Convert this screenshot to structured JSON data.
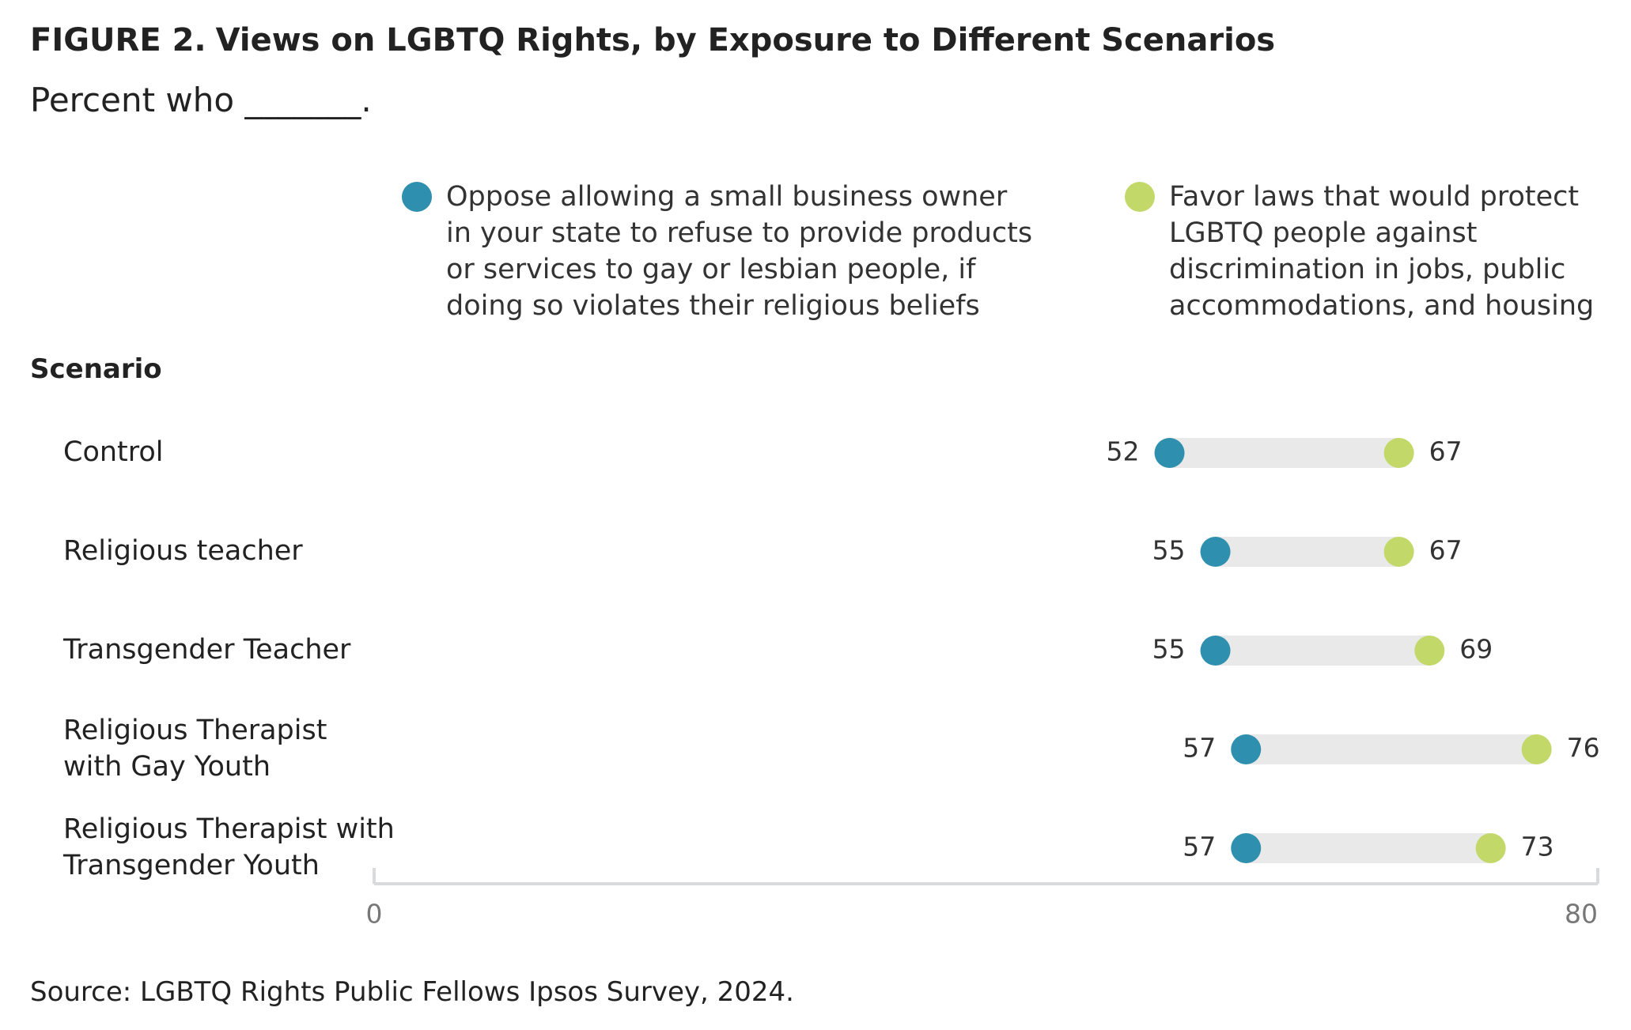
{
  "title": {
    "figure_label": "FIGURE 2.",
    "text": "Views on LGBTQ Rights, by Exposure to Different Scenarios"
  },
  "subtitle": "Percent who _______.",
  "legend": [
    {
      "color": "#2f8fae",
      "lines": [
        "Oppose allowing a small business owner",
        "in your state to refuse to provide products",
        "or services to gay or lesbian people, if",
        "doing so violates their religious beliefs"
      ]
    },
    {
      "color": "#c2d96a",
      "lines": [
        "Favor laws that would protect",
        "LGBTQ people against",
        "discrimination in jobs, public",
        "accommodations, and housing"
      ]
    }
  ],
  "scenario_header": "Scenario",
  "source": "Source: LGBTQ Rights Public Fellows Ipsos Survey, 2024.",
  "colors": {
    "oppose": "#2f8fae",
    "favor": "#c2d96a",
    "connector": "#e8e9e8",
    "axis": "#d9dadb",
    "text": "#222222"
  },
  "chart_data": {
    "type": "dumbbell",
    "xlim": [
      0,
      80
    ],
    "x_ticks": [
      "0",
      "80"
    ],
    "categories": [
      [
        "Control"
      ],
      [
        "Religious teacher"
      ],
      [
        "Transgender Teacher"
      ],
      [
        "Religious Therapist",
        "with Gay Youth"
      ],
      [
        "Religious Therapist with",
        "Transgender Youth"
      ]
    ],
    "series": [
      {
        "name": "Oppose allowing a small business owner in your state to refuse to provide products or services to gay or lesbian people, if doing so violates their religious beliefs",
        "values": [
          52,
          55,
          55,
          57,
          57
        ]
      },
      {
        "name": "Favor laws that would protect LGBTQ people against discrimination in jobs, public accommodations, and housing",
        "values": [
          67,
          67,
          69,
          76,
          73
        ]
      }
    ]
  }
}
